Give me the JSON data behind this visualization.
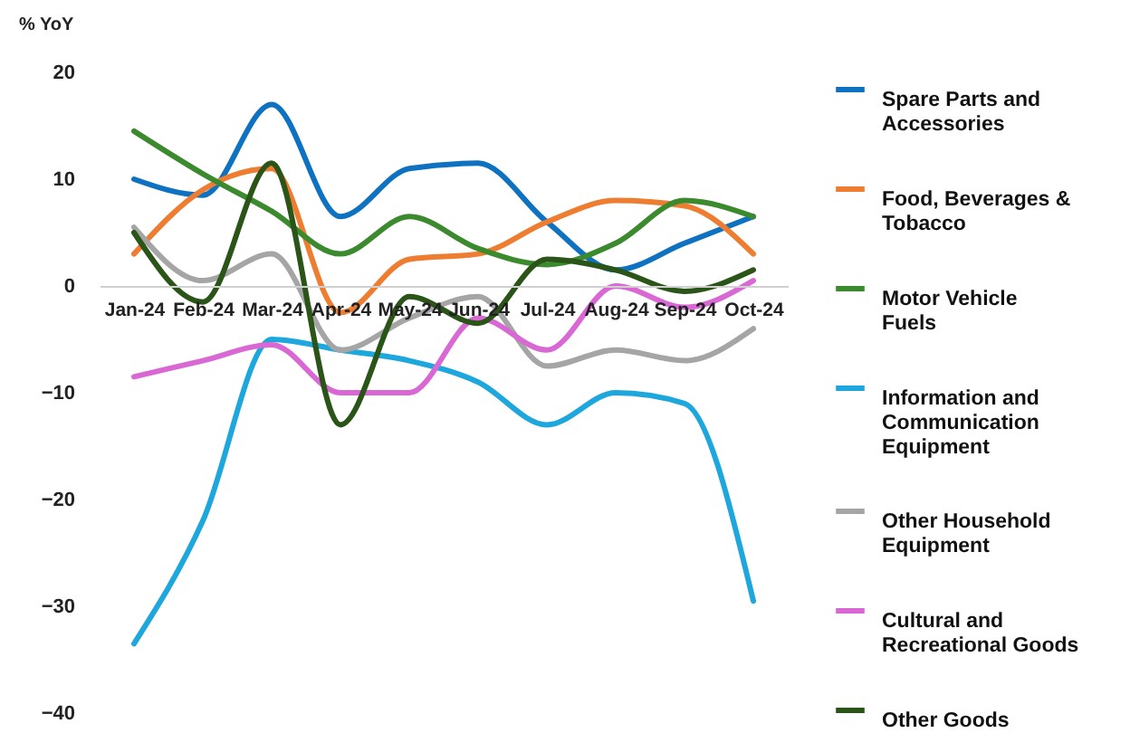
{
  "chart_data": {
    "type": "line",
    "ylabel": "% YoY",
    "categories": [
      "Jan-24",
      "Feb-24",
      "Mar-24",
      "Apr-24",
      "May-24",
      "Jun-24",
      "Jul-24",
      "Aug-24",
      "Sep-24",
      "Oct-24"
    ],
    "ylim": [
      -40,
      20
    ],
    "yticks": [
      -40,
      -30,
      -20,
      -10,
      0,
      10,
      20
    ],
    "grid": false,
    "legend": "right",
    "marker": "none",
    "line_style": "solid",
    "series": [
      {
        "name": "Spare Parts and Accessories",
        "color": "#0f72c0",
        "values": [
          10,
          8.5,
          17,
          6.5,
          11,
          11.5,
          6,
          1.5,
          4,
          6.5
        ]
      },
      {
        "name": "Food, Beverages & Tobacco",
        "color": "#ee7d31",
        "values": [
          3,
          9,
          11,
          -2.5,
          2.5,
          3,
          6,
          8,
          7.5,
          3
        ]
      },
      {
        "name": "Motor Vehicle Fuels",
        "color": "#3c8a2e",
        "values": [
          14.5,
          10.5,
          7,
          3,
          6.5,
          3.5,
          2,
          4,
          8,
          6.5
        ]
      },
      {
        "name": "Information and Communication Equipment",
        "color": "#1ea7dc",
        "values": [
          -33.5,
          -22,
          -5,
          -6,
          -7,
          -9,
          -13,
          -10,
          -11,
          -29.5
        ]
      },
      {
        "name": "Other Household Equipment",
        "color": "#a5a5a5",
        "values": [
          5.5,
          0.5,
          3,
          -6,
          -3,
          -1,
          -7.5,
          -6,
          -7,
          -4
        ]
      },
      {
        "name": "Cultural and Recreational Goods",
        "color": "#d967d4",
        "values": [
          -8.5,
          -7,
          -5.5,
          -10,
          -10,
          -3,
          -6,
          0,
          -2,
          0.5
        ]
      },
      {
        "name": "Other Goods",
        "color": "#2a5418",
        "values": [
          5,
          -1.5,
          11.5,
          -13,
          -1,
          -3.5,
          2.5,
          1.5,
          -0.5,
          1.5
        ]
      }
    ]
  }
}
